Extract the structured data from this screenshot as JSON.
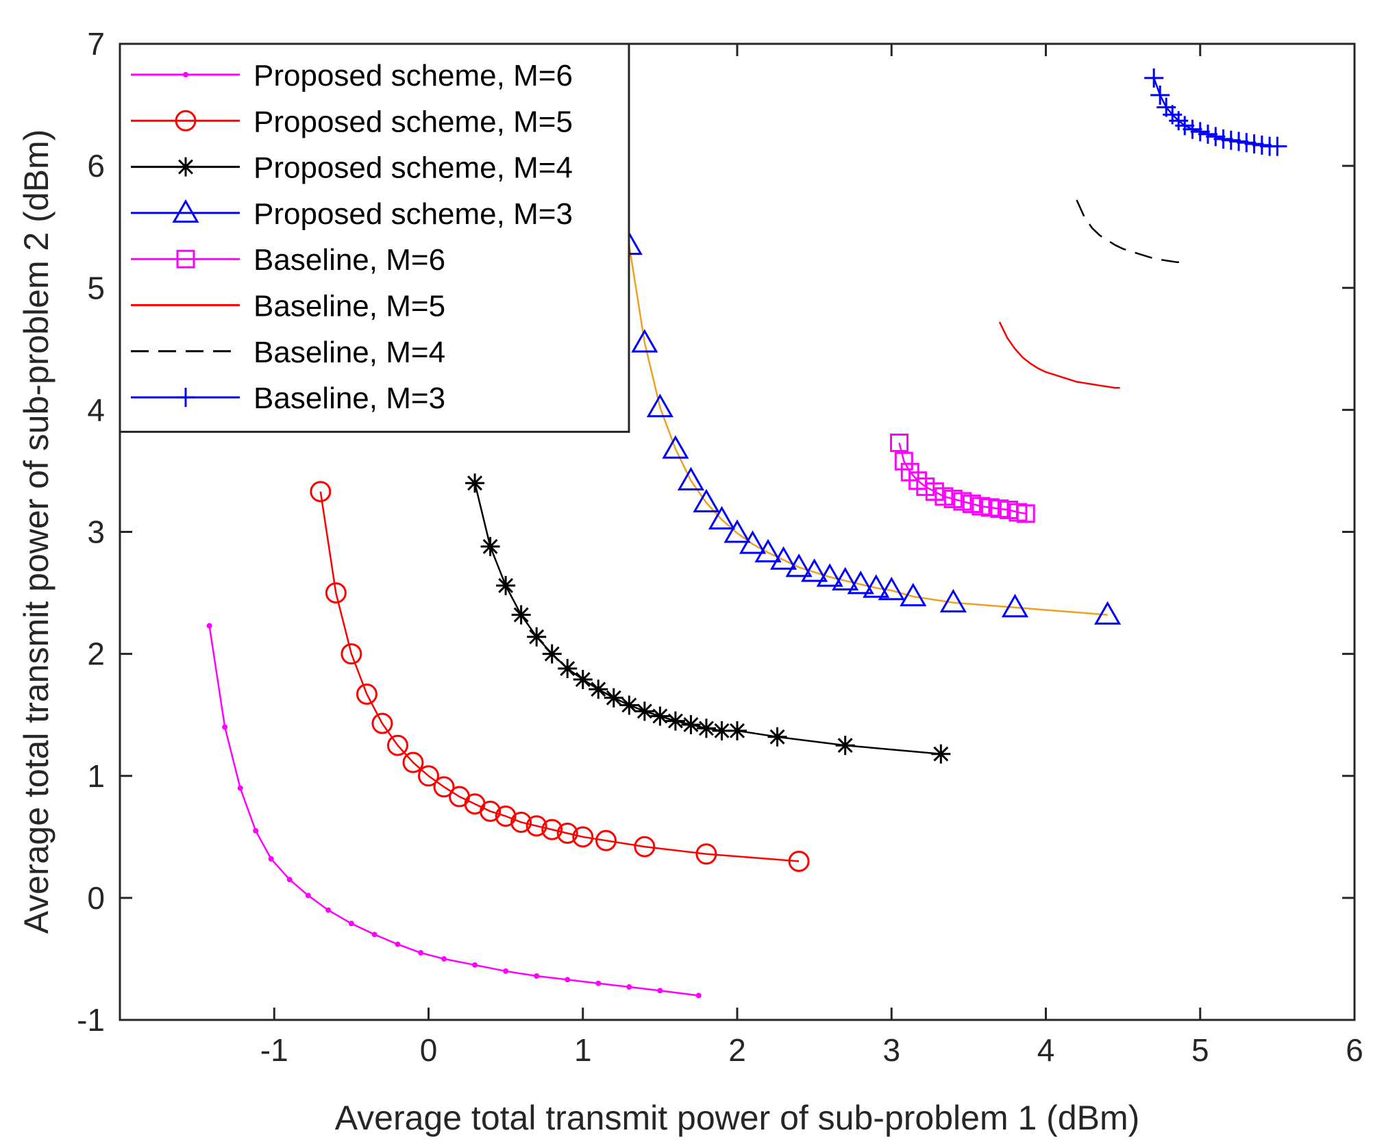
{
  "chart_data": {
    "type": "line",
    "title": "",
    "xlabel": "Average total transmit power of sub-problem 1 (dBm)",
    "ylabel": "Average total transmit power of sub-problem 2 (dBm)",
    "xlim": [
      -2,
      6
    ],
    "ylim": [
      -1,
      7
    ],
    "xticks": [
      -1,
      0,
      1,
      2,
      3,
      4,
      5,
      6
    ],
    "yticks": [
      -1,
      0,
      1,
      2,
      3,
      4,
      5,
      6,
      7
    ],
    "grid": false,
    "legend_position": "top-left",
    "series": [
      {
        "name": "Proposed scheme, M=6",
        "color": "#ff00ff",
        "marker": "dot",
        "dash": "solid",
        "x": [
          -1.42,
          -1.32,
          -1.22,
          -1.12,
          -1.02,
          -0.9,
          -0.78,
          -0.65,
          -0.5,
          -0.35,
          -0.2,
          -0.05,
          0.1,
          0.3,
          0.5,
          0.7,
          0.9,
          1.1,
          1.3,
          1.5,
          1.75
        ],
        "y": [
          2.23,
          1.4,
          0.9,
          0.55,
          0.32,
          0.15,
          0.02,
          -0.1,
          -0.21,
          -0.3,
          -0.38,
          -0.45,
          -0.5,
          -0.55,
          -0.6,
          -0.64,
          -0.67,
          -0.7,
          -0.73,
          -0.76,
          -0.8
        ]
      },
      {
        "name": "Proposed scheme, M=5",
        "color": "#ff0000",
        "marker": "circle",
        "dash": "solid",
        "x": [
          -0.7,
          -0.6,
          -0.5,
          -0.4,
          -0.3,
          -0.2,
          -0.1,
          0.0,
          0.1,
          0.2,
          0.3,
          0.4,
          0.5,
          0.6,
          0.7,
          0.8,
          0.9,
          1.0,
          1.15,
          1.4,
          1.8,
          2.4
        ],
        "y": [
          3.33,
          2.5,
          2.0,
          1.67,
          1.43,
          1.25,
          1.11,
          1.0,
          0.91,
          0.83,
          0.77,
          0.71,
          0.67,
          0.62,
          0.59,
          0.56,
          0.53,
          0.5,
          0.47,
          0.42,
          0.36,
          0.3
        ]
      },
      {
        "name": "Proposed scheme, M=4",
        "color": "#000000",
        "marker": "asterisk",
        "dash": "solid",
        "x": [
          0.3,
          0.4,
          0.5,
          0.6,
          0.7,
          0.8,
          0.9,
          1.0,
          1.1,
          1.2,
          1.3,
          1.4,
          1.5,
          1.6,
          1.7,
          1.8,
          1.9,
          2.0,
          2.26,
          2.7,
          3.32
        ],
        "y": [
          3.4,
          2.88,
          2.56,
          2.32,
          2.14,
          2.0,
          1.88,
          1.79,
          1.71,
          1.64,
          1.58,
          1.53,
          1.49,
          1.45,
          1.42,
          1.39,
          1.37,
          1.37,
          1.32,
          1.25,
          1.18
        ]
      },
      {
        "name": "Proposed scheme, M=3",
        "color": "#0000ff",
        "marker": "triangle",
        "dash": "solid",
        "line_color": "#f0a020",
        "x": [
          1.3,
          1.4,
          1.5,
          1.6,
          1.7,
          1.8,
          1.9,
          2.0,
          2.1,
          2.2,
          2.3,
          2.4,
          2.5,
          2.6,
          2.7,
          2.8,
          2.9,
          3.0,
          3.14,
          3.4,
          3.8,
          4.4
        ],
        "y": [
          5.35,
          4.55,
          4.02,
          3.68,
          3.42,
          3.24,
          3.1,
          2.99,
          2.9,
          2.83,
          2.77,
          2.71,
          2.67,
          2.63,
          2.6,
          2.57,
          2.54,
          2.52,
          2.47,
          2.42,
          2.38,
          2.32
        ]
      },
      {
        "name": "Baseline, M=6",
        "color": "#ff00ff",
        "marker": "square",
        "dash": "solid",
        "x": [
          3.05,
          3.08,
          3.12,
          3.17,
          3.22,
          3.28,
          3.34,
          3.4,
          3.46,
          3.52,
          3.58,
          3.64,
          3.7,
          3.76,
          3.82,
          3.87
        ],
        "y": [
          3.73,
          3.58,
          3.49,
          3.42,
          3.37,
          3.33,
          3.29,
          3.27,
          3.25,
          3.23,
          3.21,
          3.2,
          3.19,
          3.18,
          3.16,
          3.15
        ]
      },
      {
        "name": "Baseline, M=5",
        "color": "#ff0000",
        "marker": "none",
        "dash": "solid",
        "x": [
          3.7,
          3.75,
          3.8,
          3.85,
          3.9,
          3.95,
          4.0,
          4.05,
          4.1,
          4.15,
          4.2,
          4.25,
          4.3,
          4.35,
          4.4,
          4.45,
          4.48
        ],
        "y": [
          4.72,
          4.59,
          4.5,
          4.43,
          4.38,
          4.34,
          4.31,
          4.29,
          4.27,
          4.25,
          4.23,
          4.22,
          4.21,
          4.2,
          4.19,
          4.18,
          4.18
        ]
      },
      {
        "name": "Baseline, M=4",
        "color": "#000000",
        "marker": "none",
        "dash": "dashed",
        "x": [
          4.2,
          4.25,
          4.3,
          4.35,
          4.4,
          4.45,
          4.5,
          4.55,
          4.6,
          4.65,
          4.7,
          4.75,
          4.8,
          4.85,
          4.88
        ],
        "y": [
          5.72,
          5.58,
          5.49,
          5.43,
          5.39,
          5.35,
          5.32,
          5.3,
          5.28,
          5.26,
          5.24,
          5.23,
          5.22,
          5.21,
          5.21
        ]
      },
      {
        "name": "Baseline, M=3",
        "color": "#0000ff",
        "marker": "plus",
        "dash": "solid",
        "x": [
          4.7,
          4.74,
          4.78,
          4.82,
          4.86,
          4.9,
          4.95,
          5.0,
          5.05,
          5.1,
          5.15,
          5.2,
          5.25,
          5.3,
          5.35,
          5.4,
          5.45,
          5.5
        ],
        "y": [
          6.72,
          6.58,
          6.48,
          6.42,
          6.37,
          6.33,
          6.3,
          6.28,
          6.26,
          6.24,
          6.22,
          6.21,
          6.2,
          6.19,
          6.18,
          6.17,
          6.16,
          6.16
        ]
      }
    ]
  }
}
